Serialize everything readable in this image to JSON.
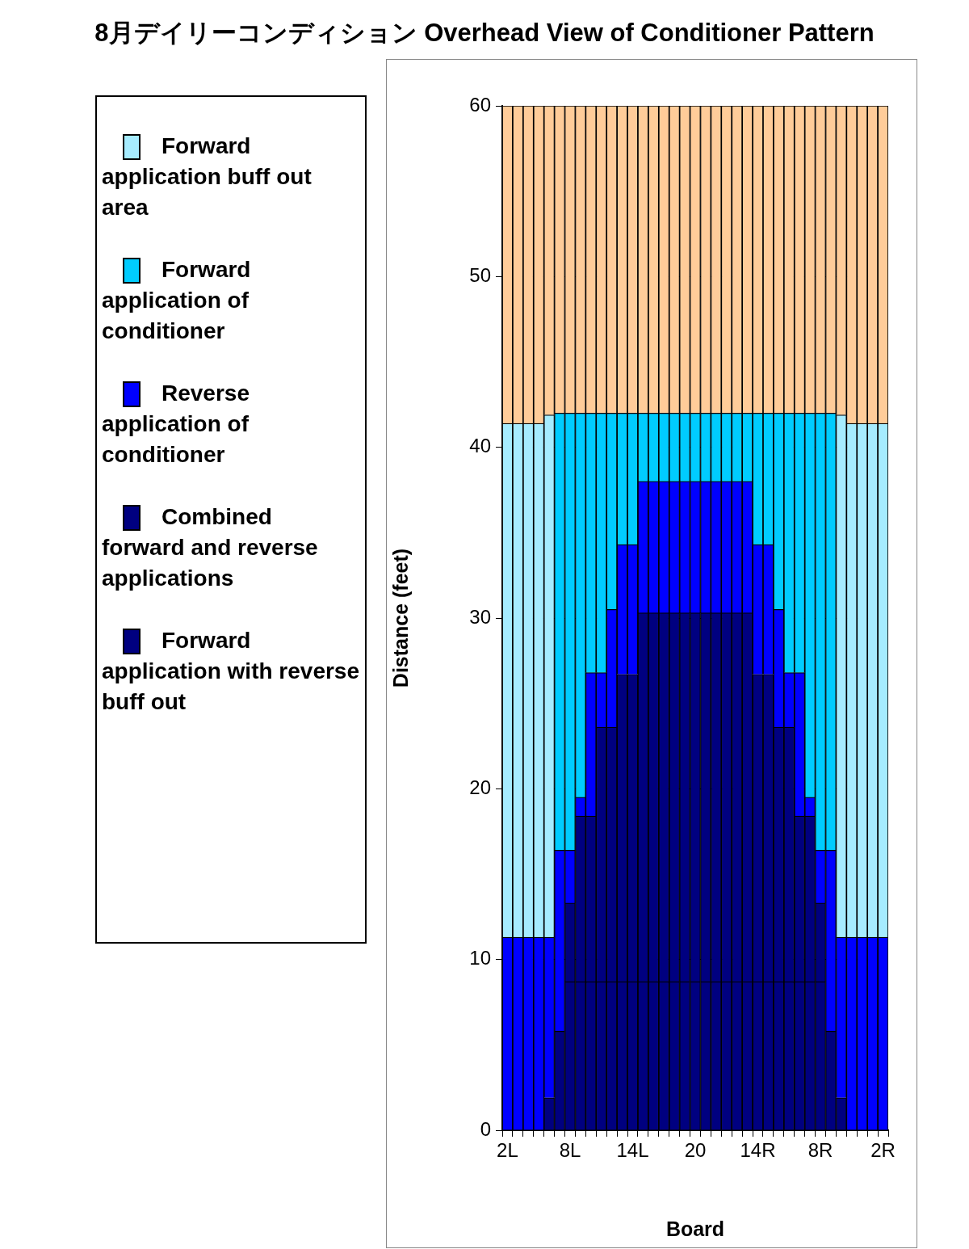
{
  "chart_data": {
    "type": "bar",
    "title": "8月デイリーコンディション Overhead View of Conditioner Pattern",
    "xlabel": "Board",
    "ylabel": "Distance (feet)",
    "stacked": true,
    "legend": "left",
    "grid": "y",
    "ylim": [
      0,
      60
    ],
    "yticks": [
      0,
      10,
      20,
      30,
      40,
      50,
      60
    ],
    "categories": [
      "2L",
      null,
      null,
      null,
      null,
      null,
      "8L",
      null,
      null,
      null,
      null,
      null,
      "14L",
      null,
      null,
      null,
      null,
      null,
      "20",
      null,
      null,
      null,
      null,
      null,
      "14R",
      null,
      null,
      null,
      null,
      null,
      "8R",
      null,
      null,
      null,
      null,
      null,
      "2R"
    ],
    "series": [
      {
        "name": "Forward application with reverse buff out",
        "color": "#000080",
        "values": [
          null,
          null,
          null,
          null,
          null,
          null,
          8.7,
          8.7,
          8.7,
          8.7,
          8.7,
          8.7,
          8.7,
          8.7,
          8.7,
          8.7,
          8.7,
          8.7,
          8.7,
          8.7,
          8.7,
          8.7,
          8.7,
          8.7,
          8.7,
          8.7,
          8.7,
          8.7,
          8.7,
          8.7,
          8.7,
          null,
          null,
          null,
          null,
          null,
          null
        ]
      },
      {
        "name": "Combined forward and reverse applications",
        "color": "#000080",
        "values": [
          null,
          null,
          null,
          null,
          1.9,
          5.8,
          4.6,
          9.7,
          9.7,
          14.9,
          14.9,
          18.0,
          18.0,
          21.6,
          21.6,
          21.6,
          21.6,
          21.6,
          21.6,
          21.6,
          21.6,
          21.6,
          21.6,
          21.6,
          18.0,
          18.0,
          14.9,
          14.9,
          9.7,
          9.7,
          4.6,
          5.8,
          1.9,
          null,
          null,
          null,
          null
        ]
      },
      {
        "name": "Reverse application of conditioner",
        "color": "#0000ff",
        "values": [
          11.3,
          11.3,
          11.3,
          11.3,
          9.4,
          10.6,
          3.1,
          1.1,
          8.4,
          3.2,
          6.9,
          7.6,
          7.6,
          7.7,
          7.7,
          7.7,
          7.7,
          7.7,
          7.7,
          7.7,
          7.7,
          7.7,
          7.7,
          7.7,
          7.6,
          7.6,
          6.9,
          3.2,
          8.4,
          1.1,
          3.1,
          10.6,
          9.4,
          11.3,
          11.3,
          11.3,
          11.3
        ]
      },
      {
        "name": "Forward application of conditioner",
        "color": "#00ccff",
        "values": [
          null,
          null,
          null,
          null,
          null,
          25.6,
          25.6,
          22.5,
          15.2,
          15.2,
          11.5,
          7.7,
          7.7,
          4.0,
          4.0,
          4.0,
          4.0,
          4.0,
          4.0,
          4.0,
          4.0,
          4.0,
          4.0,
          4.0,
          7.7,
          7.7,
          11.5,
          15.2,
          15.2,
          22.5,
          25.6,
          25.6,
          null,
          null,
          null,
          null,
          null
        ]
      },
      {
        "name": "Forward application buff out area",
        "color": "#a6ecff",
        "values": [
          30.1,
          30.1,
          30.1,
          30.1,
          30.6,
          null,
          null,
          null,
          null,
          null,
          null,
          null,
          null,
          null,
          null,
          null,
          null,
          null,
          null,
          null,
          null,
          null,
          null,
          null,
          null,
          null,
          null,
          null,
          null,
          null,
          null,
          null,
          30.6,
          30.1,
          30.1,
          30.1,
          30.1
        ]
      },
      {
        "color": "#ffcc99",
        "values": [
          18.6,
          18.6,
          18.6,
          18.6,
          18.1,
          18.0,
          18.0,
          18.0,
          18.0,
          18.0,
          18.0,
          18.0,
          18.0,
          18.0,
          18.0,
          18.0,
          18.0,
          18.0,
          18.0,
          18.0,
          18.0,
          18.0,
          18.0,
          18.0,
          18.0,
          18.0,
          18.0,
          18.0,
          18.0,
          18.0,
          18.0,
          18.0,
          18.1,
          18.6,
          18.6,
          18.6,
          18.6
        ]
      }
    ]
  }
}
